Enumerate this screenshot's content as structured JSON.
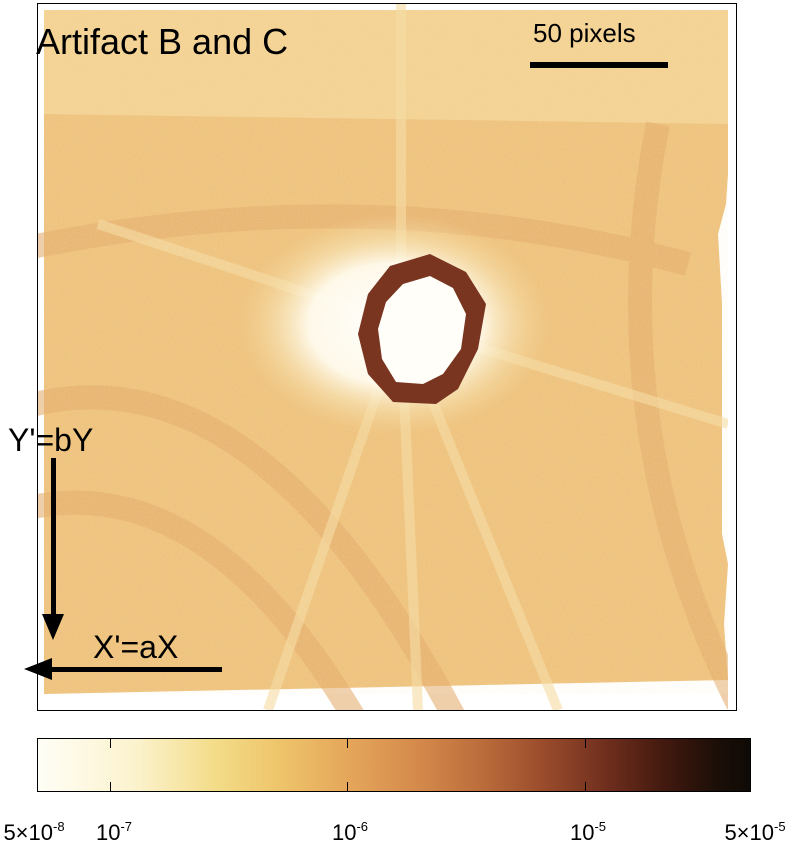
{
  "image": {
    "title": "Artifact B and C",
    "scale_bar_label": "50 pixels",
    "y_axis_label": "Y'=bY",
    "x_axis_label": "X'=aX"
  },
  "colorbar": {
    "scale": "log",
    "tick_labels": [
      {
        "mant": "5×10",
        "exp": "-8",
        "value": 5e-08
      },
      {
        "mant": "10",
        "exp": "-7",
        "value": 1e-07
      },
      {
        "mant": "10",
        "exp": "-6",
        "value": 1e-06
      },
      {
        "mant": "10",
        "exp": "-5",
        "value": 1e-05
      },
      {
        "mant": "5×10",
        "exp": "-5",
        "value": 5e-05
      }
    ],
    "colors": [
      "#fffef6",
      "#f3dc88",
      "#e4a55a",
      "#b96a3a",
      "#6f2e1d",
      "#0f0a06"
    ]
  }
}
